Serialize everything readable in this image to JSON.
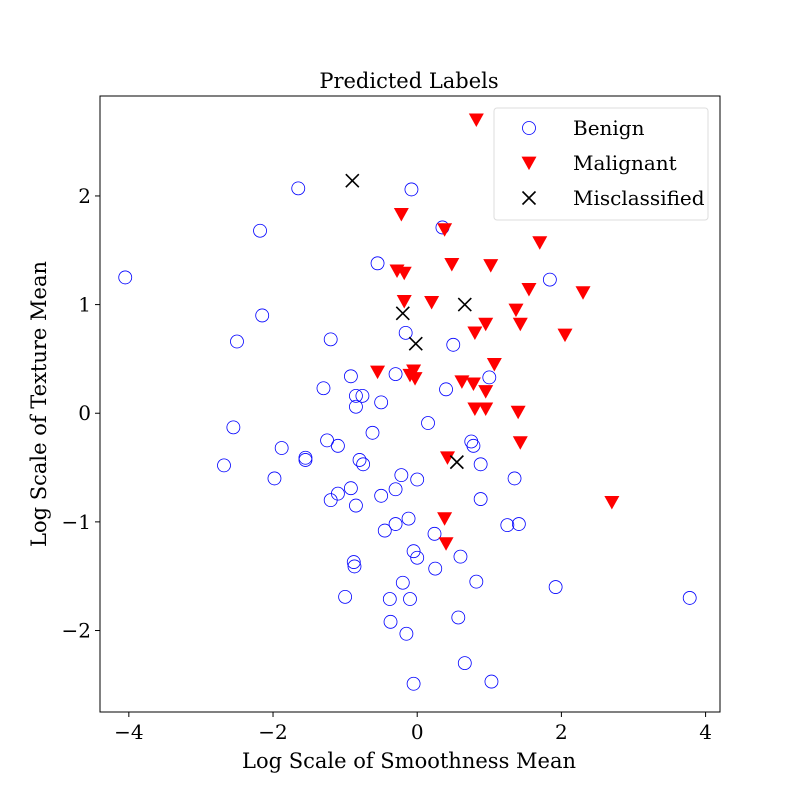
{
  "chart_data": {
    "type": "scatter",
    "title": "Predicted Labels",
    "xlabel": "Log Scale of Smoothness Mean",
    "ylabel": "Log Scale of Texture Mean",
    "xlim": [
      -4.4,
      4.2
    ],
    "ylim": [
      -2.75,
      2.92
    ],
    "xticks": [
      -4,
      -2,
      0,
      2,
      4
    ],
    "yticks": [
      -2,
      -1,
      0,
      1,
      2
    ],
    "xtick_labels": [
      "−4",
      "−2",
      "0",
      "2",
      "4"
    ],
    "ytick_labels": [
      "−2",
      "−1",
      "0",
      "1",
      "2"
    ],
    "grid": false,
    "legend_position": "top-right",
    "series": [
      {
        "name": "Benign",
        "marker": "circle-open",
        "color": "#0000ff",
        "points": [
          [
            -4.05,
            1.25
          ],
          [
            -2.68,
            -0.48
          ],
          [
            -2.55,
            -0.13
          ],
          [
            -2.5,
            0.66
          ],
          [
            -2.18,
            1.68
          ],
          [
            -2.15,
            0.9
          ],
          [
            -1.98,
            -0.6
          ],
          [
            -1.88,
            -0.32
          ],
          [
            -1.65,
            2.07
          ],
          [
            -1.55,
            -0.41
          ],
          [
            -1.55,
            -0.43
          ],
          [
            -1.3,
            0.23
          ],
          [
            -1.25,
            -0.25
          ],
          [
            -1.2,
            0.68
          ],
          [
            -1.2,
            -0.8
          ],
          [
            -1.1,
            -0.3
          ],
          [
            -1.1,
            -0.74
          ],
          [
            -1.0,
            -1.69
          ],
          [
            -0.92,
            0.34
          ],
          [
            -0.92,
            -0.69
          ],
          [
            -0.88,
            -1.37
          ],
          [
            -0.87,
            -1.41
          ],
          [
            -0.85,
            0.06
          ],
          [
            -0.85,
            0.16
          ],
          [
            -0.85,
            -0.85
          ],
          [
            -0.8,
            -0.43
          ],
          [
            -0.76,
            0.16
          ],
          [
            -0.75,
            -0.47
          ],
          [
            -0.62,
            -0.18
          ],
          [
            -0.55,
            1.38
          ],
          [
            -0.5,
            0.1
          ],
          [
            -0.5,
            -0.76
          ],
          [
            -0.45,
            -1.08
          ],
          [
            -0.38,
            -1.71
          ],
          [
            -0.37,
            -1.92
          ],
          [
            -0.3,
            0.36
          ],
          [
            -0.3,
            -0.7
          ],
          [
            -0.3,
            -1.02
          ],
          [
            -0.22,
            -0.57
          ],
          [
            -0.2,
            -1.56
          ],
          [
            -0.16,
            0.74
          ],
          [
            -0.15,
            -2.03
          ],
          [
            -0.12,
            -0.97
          ],
          [
            -0.1,
            -1.71
          ],
          [
            -0.08,
            2.06
          ],
          [
            -0.05,
            -1.27
          ],
          [
            -0.05,
            -2.49
          ],
          [
            0.0,
            -0.61
          ],
          [
            0.0,
            -1.33
          ],
          [
            0.15,
            -0.09
          ],
          [
            0.24,
            -1.11
          ],
          [
            0.25,
            -1.43
          ],
          [
            0.35,
            1.71
          ],
          [
            0.4,
            0.22
          ],
          [
            0.5,
            0.63
          ],
          [
            0.57,
            -1.88
          ],
          [
            0.6,
            -1.32
          ],
          [
            0.66,
            -2.3
          ],
          [
            0.75,
            -0.26
          ],
          [
            0.78,
            -0.3
          ],
          [
            0.82,
            -1.55
          ],
          [
            0.88,
            -0.47
          ],
          [
            0.88,
            -0.79
          ],
          [
            1.0,
            0.33
          ],
          [
            1.03,
            -2.47
          ],
          [
            1.25,
            -1.03
          ],
          [
            1.35,
            -0.6
          ],
          [
            1.41,
            -1.02
          ],
          [
            1.84,
            1.23
          ],
          [
            1.92,
            -1.6
          ],
          [
            3.78,
            -1.7
          ]
        ]
      },
      {
        "name": "Malignant",
        "marker": "triangle-down",
        "color": "#ff0000",
        "points": [
          [
            0.82,
            2.7
          ],
          [
            -0.22,
            1.83
          ],
          [
            0.38,
            1.69
          ],
          [
            1.7,
            1.57
          ],
          [
            -0.28,
            1.31
          ],
          [
            -0.18,
            1.29
          ],
          [
            0.48,
            1.37
          ],
          [
            1.02,
            1.36
          ],
          [
            1.55,
            1.14
          ],
          [
            2.3,
            1.11
          ],
          [
            -0.18,
            1.03
          ],
          [
            0.2,
            1.02
          ],
          [
            1.37,
            0.95
          ],
          [
            1.43,
            0.82
          ],
          [
            0.95,
            0.82
          ],
          [
            0.8,
            0.74
          ],
          [
            2.05,
            0.72
          ],
          [
            1.07,
            0.45
          ],
          [
            -0.55,
            0.38
          ],
          [
            -0.05,
            0.39
          ],
          [
            -0.03,
            0.32
          ],
          [
            -0.1,
            0.35
          ],
          [
            0.62,
            0.29
          ],
          [
            0.78,
            0.27
          ],
          [
            0.95,
            0.2
          ],
          [
            0.8,
            0.04
          ],
          [
            0.95,
            0.04
          ],
          [
            1.4,
            0.01
          ],
          [
            1.43,
            -0.27
          ],
          [
            0.42,
            -0.41
          ],
          [
            0.38,
            -0.97
          ],
          [
            0.4,
            -1.2
          ],
          [
            2.7,
            -0.82
          ]
        ]
      },
      {
        "name": "Misclassified",
        "marker": "x",
        "color": "#000000",
        "points": [
          [
            -0.9,
            2.14
          ],
          [
            -0.2,
            0.92
          ],
          [
            -0.02,
            0.64
          ],
          [
            0.66,
            1.0
          ],
          [
            0.55,
            -0.45
          ]
        ]
      }
    ]
  }
}
